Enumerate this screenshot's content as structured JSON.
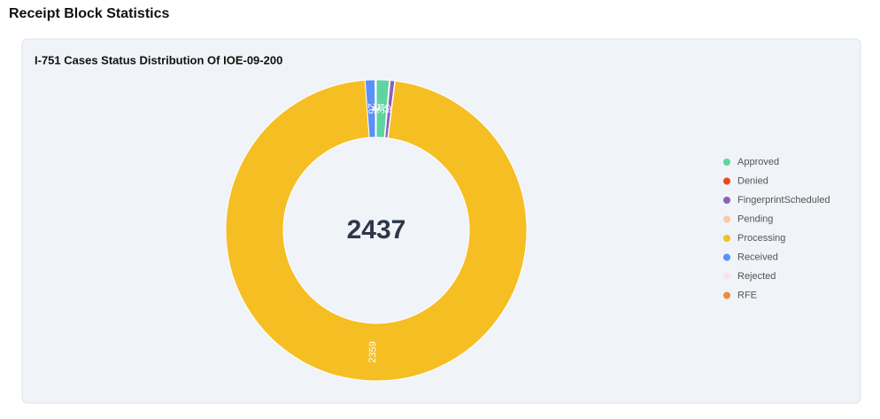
{
  "page_title": "Receipt Block Statistics",
  "chart_data": {
    "type": "donut",
    "title": "I-751 Cases Status Distribution Of IOE-09-200",
    "center_label": 2437,
    "categories": [
      "Approved",
      "Denied",
      "FingerprintScheduled",
      "Pending",
      "Processing",
      "Received",
      "Rejected",
      "RFE"
    ],
    "values": [
      34,
      2,
      12,
      1,
      2359,
      26,
      1,
      2
    ],
    "colors": [
      "#5fd4a0",
      "#e8491d",
      "#8e5fb8",
      "#fcc8a0",
      "#f5be22",
      "#5b8ff9",
      "#fde2ec",
      "#f08a3c"
    ],
    "legend": "right"
  }
}
